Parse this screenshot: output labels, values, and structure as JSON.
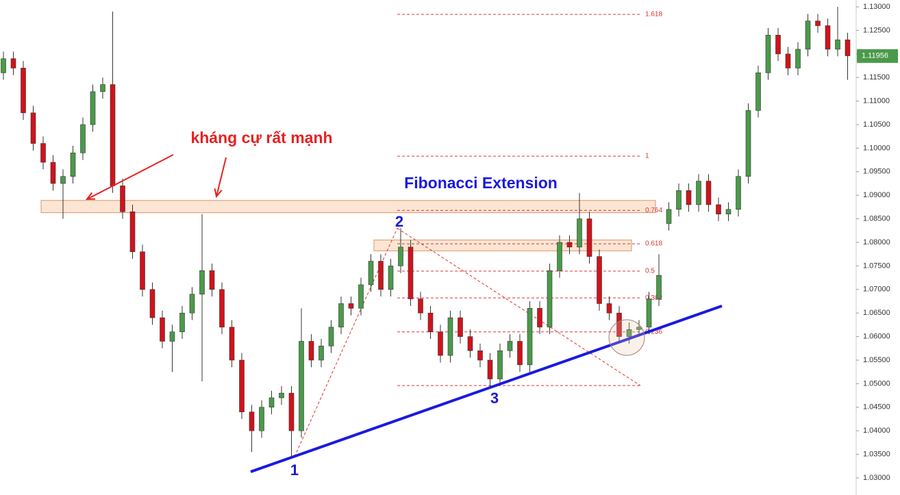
{
  "chart_data": {
    "type": "candlestick",
    "open": [
      1.116,
      1.119,
      1.117,
      1.1075,
      1.101,
      1.097,
      1.0925,
      1.094,
      1.099,
      1.105,
      1.112,
      1.1135,
      1.092,
      1.0865,
      1.078,
      1.07,
      1.064,
      1.059,
      1.061,
      1.065,
      1.069,
      1.074,
      1.07,
      1.062,
      1.055,
      1.044,
      1.04,
      1.045,
      1.047,
      1.048,
      1.04,
      1.059,
      1.055,
      1.058,
      1.062,
      1.067,
      1.066,
      1.071,
      1.076,
      1.07,
      1.075,
      1.079,
      1.068,
      1.065,
      1.061,
      1.056,
      1.064,
      1.06,
      1.057,
      1.055,
      1.051,
      1.057,
      1.059,
      1.054,
      1.066,
      1.062,
      1.074,
      1.08,
      1.079,
      1.085,
      1.077,
      1.067,
      1.065,
      1.06,
      1.0615,
      1.062,
      1.068,
      1.084,
      1.087,
      1.091,
      1.088,
      1.093,
      1.088,
      1.086,
      1.087,
      1.094,
      1.108,
      1.116,
      1.124,
      1.12,
      1.117,
      1.121,
      1.127,
      1.126,
      1.121,
      1.123
    ],
    "high": [
      1.1205,
      1.1205,
      1.1185,
      1.109,
      1.1025,
      1.0985,
      1.0955,
      1.1005,
      1.1065,
      1.1135,
      1.115,
      1.129,
      1.0935,
      1.088,
      1.0795,
      1.0715,
      1.0655,
      1.0625,
      1.0665,
      1.0705,
      1.086,
      1.0755,
      1.0715,
      1.0635,
      1.0565,
      1.0455,
      1.0465,
      1.0485,
      1.0495,
      1.0495,
      1.066,
      1.0605,
      1.0595,
      1.0635,
      1.0685,
      1.0685,
      1.0725,
      1.0775,
      1.0775,
      1.0765,
      1.083,
      1.0805,
      1.0695,
      1.0665,
      1.0625,
      1.0655,
      1.0655,
      1.0615,
      1.0585,
      1.0565,
      1.0585,
      1.0605,
      1.0605,
      1.0675,
      1.0675,
      1.0755,
      1.0815,
      1.0815,
      1.0905,
      1.0865,
      1.0785,
      1.0685,
      1.0665,
      1.063,
      1.0635,
      1.0695,
      1.0775,
      1.0885,
      1.0925,
      1.0925,
      1.0945,
      1.0945,
      1.0895,
      1.0885,
      1.0955,
      1.1095,
      1.1175,
      1.1255,
      1.1255,
      1.1215,
      1.1225,
      1.1285,
      1.1285,
      1.1275,
      1.13,
      1.1245
    ],
    "low": [
      1.1145,
      1.1155,
      1.106,
      1.0995,
      1.0955,
      1.091,
      1.085,
      1.0925,
      1.0975,
      1.1035,
      1.1105,
      1.0905,
      1.085,
      1.0765,
      1.0685,
      1.0625,
      1.0575,
      1.0525,
      1.0595,
      1.0635,
      1.0505,
      1.0685,
      1.0605,
      1.0535,
      1.0425,
      1.0355,
      1.0385,
      1.0435,
      1.0455,
      1.0345,
      1.0385,
      1.0535,
      1.0535,
      1.0565,
      1.0605,
      1.0645,
      1.0645,
      1.0695,
      1.0685,
      1.0685,
      1.0735,
      1.0665,
      1.0635,
      1.0595,
      1.0545,
      1.0545,
      1.0585,
      1.0555,
      1.0535,
      1.0495,
      1.0495,
      1.0555,
      1.0525,
      1.0525,
      1.0605,
      1.0605,
      1.0725,
      1.0775,
      1.0775,
      1.0755,
      1.0655,
      1.0635,
      1.0585,
      1.0585,
      1.06,
      1.0605,
      1.0665,
      1.0825,
      1.0855,
      1.0865,
      1.0865,
      1.0865,
      1.0845,
      1.0845,
      1.0855,
      1.0925,
      1.1065,
      1.1145,
      1.1185,
      1.1155,
      1.1155,
      1.1195,
      1.1245,
      1.1195,
      1.1195,
      1.1145
    ],
    "close": [
      1.119,
      1.117,
      1.1075,
      1.101,
      1.097,
      1.0925,
      1.094,
      1.099,
      1.105,
      1.112,
      1.1135,
      1.092,
      1.0865,
      1.078,
      1.07,
      1.064,
      1.059,
      1.061,
      1.065,
      1.069,
      1.074,
      1.07,
      1.062,
      1.055,
      1.044,
      1.04,
      1.045,
      1.047,
      1.048,
      1.04,
      1.059,
      1.055,
      1.058,
      1.062,
      1.067,
      1.066,
      1.071,
      1.076,
      1.07,
      1.075,
      1.079,
      1.068,
      1.065,
      1.061,
      1.056,
      1.064,
      1.06,
      1.057,
      1.055,
      1.051,
      1.057,
      1.059,
      1.054,
      1.066,
      1.062,
      1.074,
      1.08,
      1.079,
      1.085,
      1.077,
      1.067,
      1.065,
      1.06,
      1.0615,
      1.062,
      1.068,
      1.073,
      1.087,
      1.091,
      1.088,
      1.093,
      1.088,
      1.086,
      1.087,
      1.094,
      1.108,
      1.116,
      1.124,
      1.12,
      1.117,
      1.121,
      1.127,
      1.126,
      1.121,
      1.123,
      1.1196
    ],
    "up_color": "#4a9a4a",
    "down_color": "#d0131b",
    "ylim": [
      1.03,
      1.1315
    ],
    "yticks": [
      {
        "value": 1.03,
        "label": "1.03000"
      },
      {
        "value": 1.035,
        "label": "1.03500"
      },
      {
        "value": 1.04,
        "label": "1.04000"
      },
      {
        "value": 1.045,
        "label": "1.04500"
      },
      {
        "value": 1.05,
        "label": "1.05000"
      },
      {
        "value": 1.055,
        "label": "1.05500"
      },
      {
        "value": 1.06,
        "label": "1.06000"
      },
      {
        "value": 1.065,
        "label": "1.06500"
      },
      {
        "value": 1.07,
        "label": "1.07000"
      },
      {
        "value": 1.075,
        "label": "1.07500"
      },
      {
        "value": 1.08,
        "label": "1.08000"
      },
      {
        "value": 1.085,
        "label": "1.08500"
      },
      {
        "value": 1.09,
        "label": "1.09000"
      },
      {
        "value": 1.095,
        "label": "1.09500"
      },
      {
        "value": 1.1,
        "label": "1.10000"
      },
      {
        "value": 1.105,
        "label": "1.10500"
      },
      {
        "value": 1.11,
        "label": "1.11000"
      },
      {
        "value": 1.115,
        "label": "1.11500"
      },
      {
        "value": 1.12,
        "label": "1.12000"
      },
      {
        "value": 1.125,
        "label": "1.12500"
      },
      {
        "value": 1.13,
        "label": "1.13000"
      }
    ],
    "last_price": 1.11956,
    "fib_title": "Fibonacci Extension",
    "fib_levels": [
      {
        "level": 1.618,
        "price": 1.1284
      },
      {
        "level": 1,
        "price": 1.0983
      },
      {
        "level": 0.764,
        "price": 1.0868
      },
      {
        "level": 0.618,
        "price": 1.0797
      },
      {
        "level": 0.5,
        "price": 1.0739
      },
      {
        "level": 0.382,
        "price": 1.0682
      },
      {
        "level": 0.236,
        "price": 1.061
      }
    ],
    "fib_base": 1.0496,
    "zones": [
      {
        "from": 1.0863,
        "to": 1.0889
      },
      {
        "from": 1.0782,
        "to": 1.0805
      }
    ],
    "zone_label": "kháng cự rất mạnh",
    "trendline": [
      1.0313,
      1.0665
    ],
    "points": [
      {
        "label": "1",
        "price": 1.0345
      },
      {
        "label": "2",
        "price": 1.083
      },
      {
        "label": "3",
        "price": 1.0495
      }
    ]
  }
}
